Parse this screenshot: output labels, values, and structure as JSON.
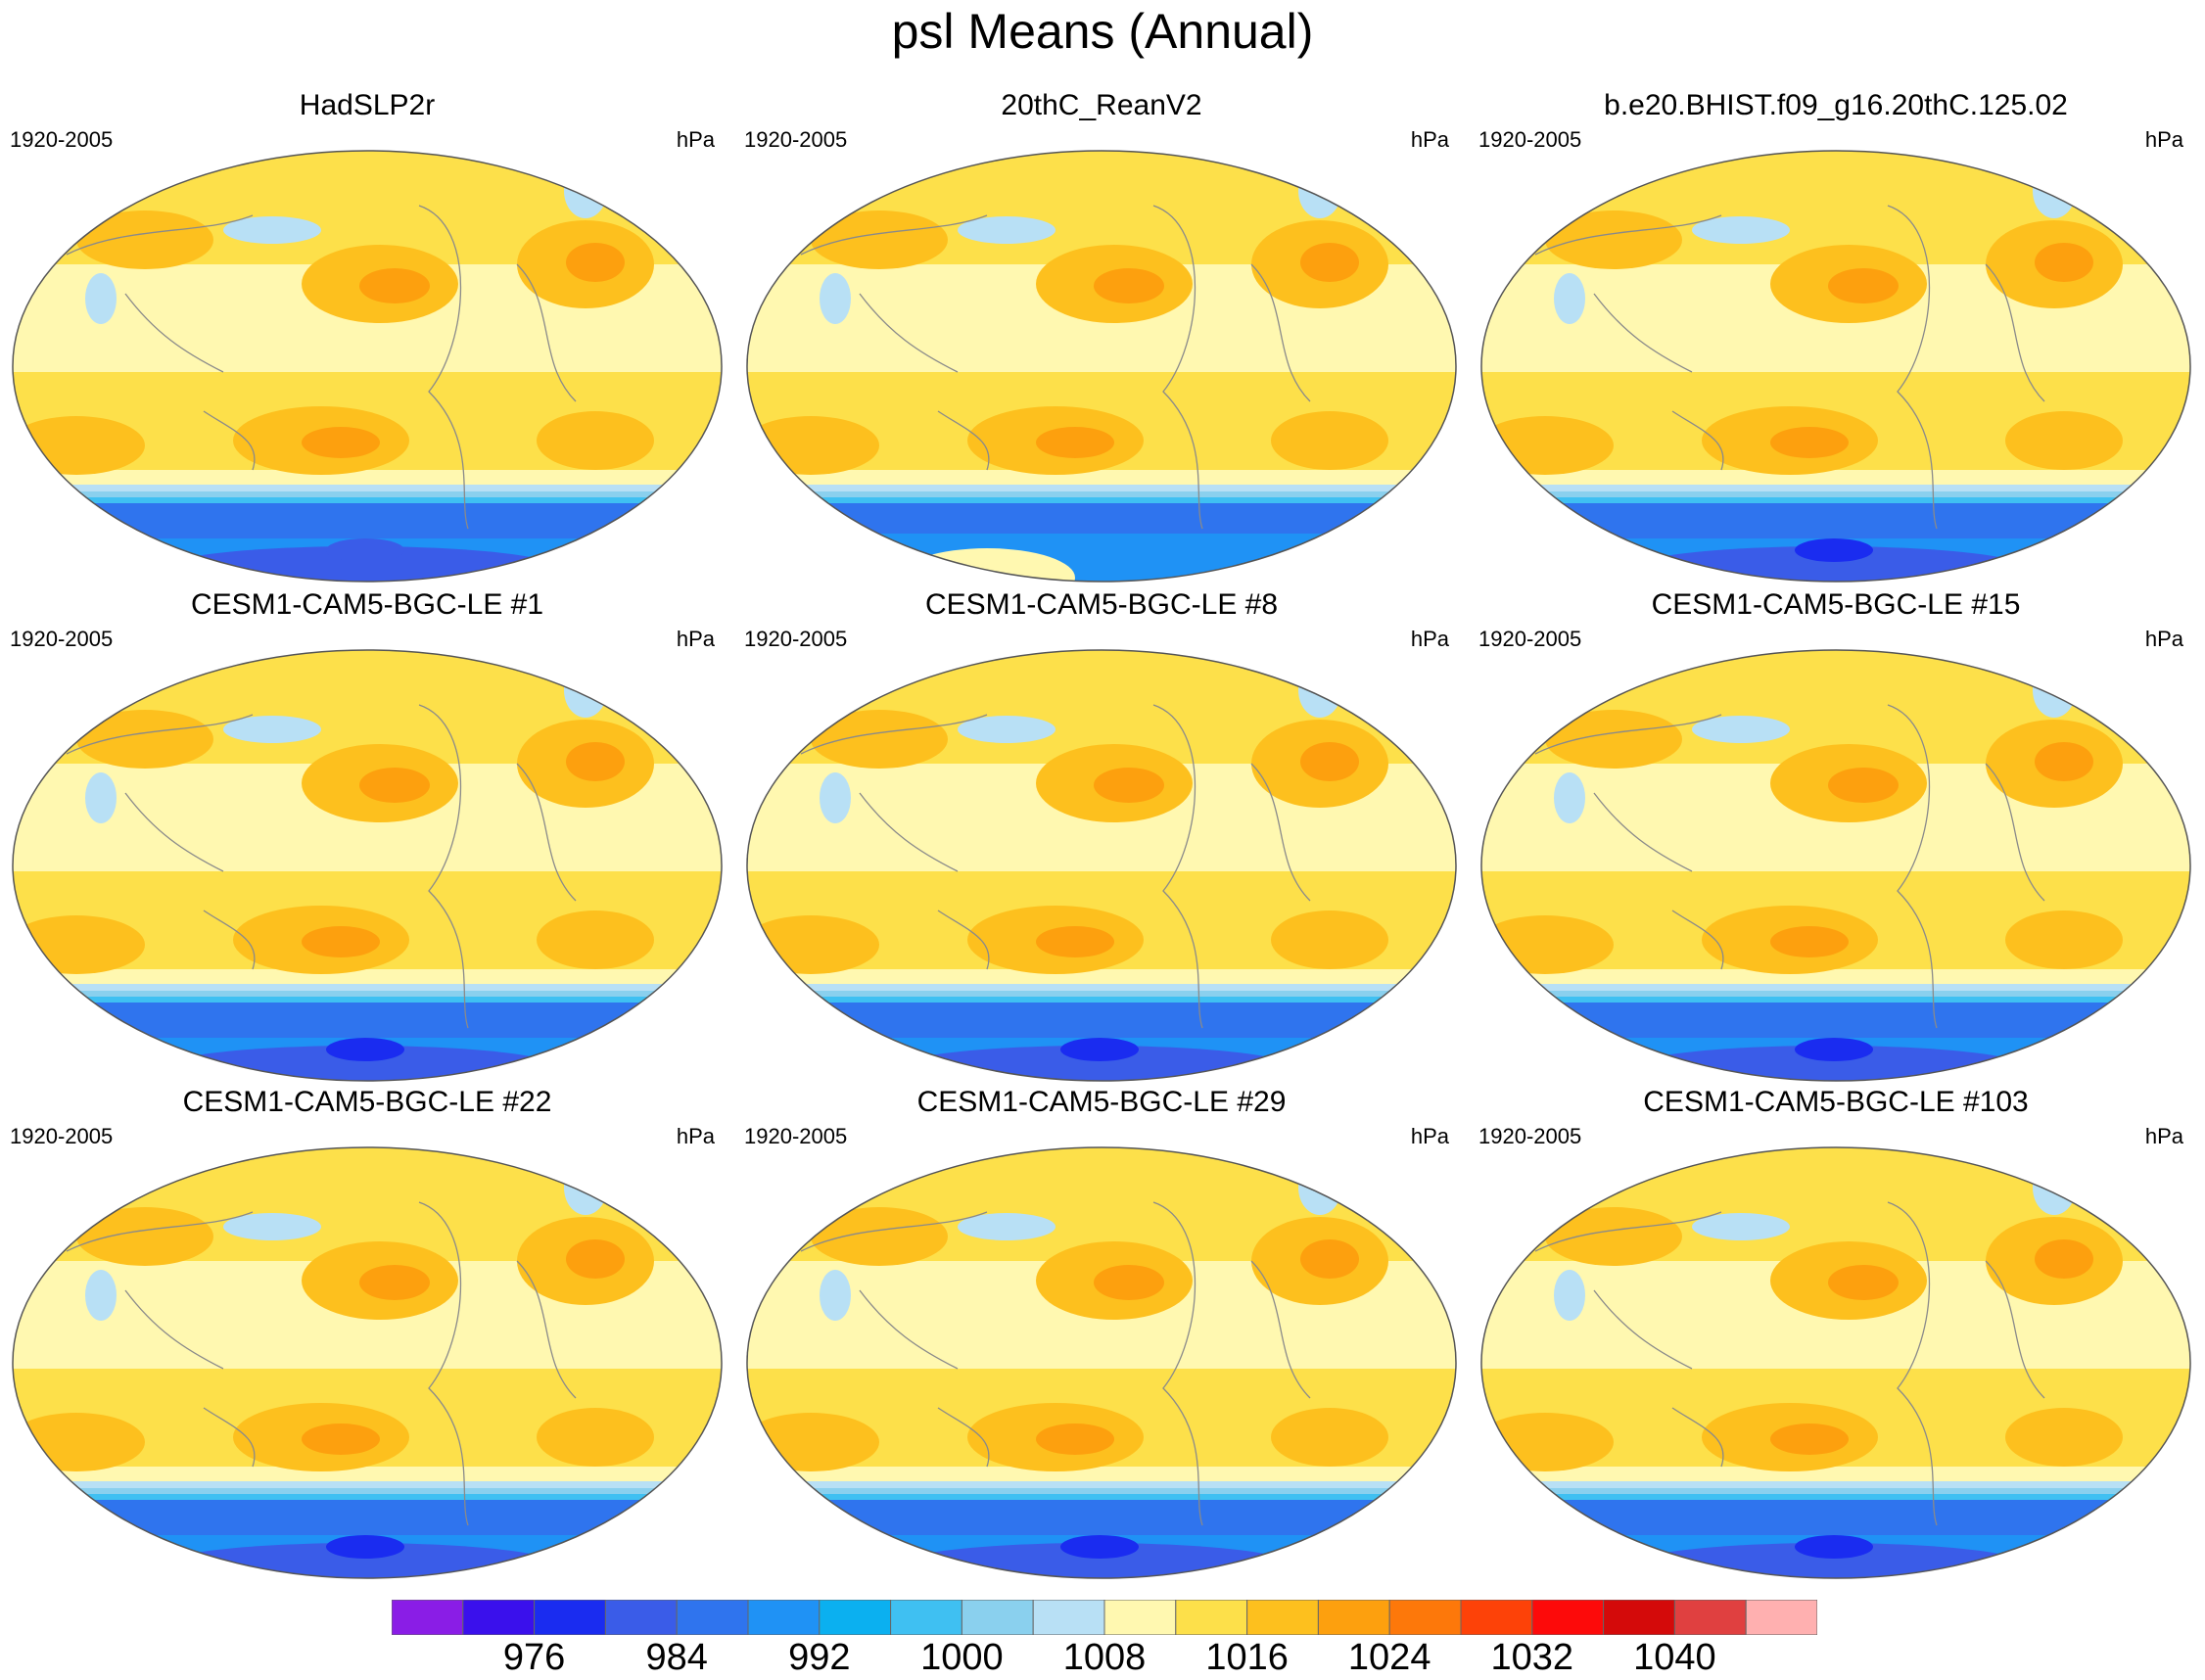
{
  "title": "psl Means (Annual)",
  "panel_period": "1920-2005",
  "panel_units": "hPa",
  "panels": [
    {
      "title": "HadSLP2r",
      "southern_style": "obs"
    },
    {
      "title": "20thC_ReanV2",
      "southern_style": "rean"
    },
    {
      "title": "b.e20.BHIST.f09_g16.20thC.125.02",
      "southern_style": "model"
    },
    {
      "title": "CESM1-CAM5-BGC-LE #1",
      "southern_style": "model"
    },
    {
      "title": "CESM1-CAM5-BGC-LE #8",
      "southern_style": "model"
    },
    {
      "title": "CESM1-CAM5-BGC-LE #15",
      "southern_style": "model"
    },
    {
      "title": "CESM1-CAM5-BGC-LE #22",
      "southern_style": "model"
    },
    {
      "title": "CESM1-CAM5-BGC-LE #29",
      "southern_style": "model"
    },
    {
      "title": "CESM1-CAM5-BGC-LE #103",
      "southern_style": "model"
    }
  ],
  "colorbar": {
    "colors": [
      "#8a1de6",
      "#3a10ec",
      "#1a2cf0",
      "#3a5ce8",
      "#2f74ee",
      "#1f92f5",
      "#0bb0f0",
      "#3fc0f2",
      "#8ad0ee",
      "#b8e0f5",
      "#fff8b0",
      "#fde04a",
      "#fdc01e",
      "#fda00e",
      "#fd780a",
      "#fd4208",
      "#fd0a0a",
      "#d40a0a",
      "#e04040",
      "#ffb0b0"
    ],
    "labels": [
      "976",
      "984",
      "992",
      "1000",
      "1008",
      "1016",
      "1024",
      "1032",
      "1040"
    ],
    "label_boundaries": [
      2,
      4,
      6,
      8,
      10,
      12,
      14,
      16,
      18
    ]
  }
}
